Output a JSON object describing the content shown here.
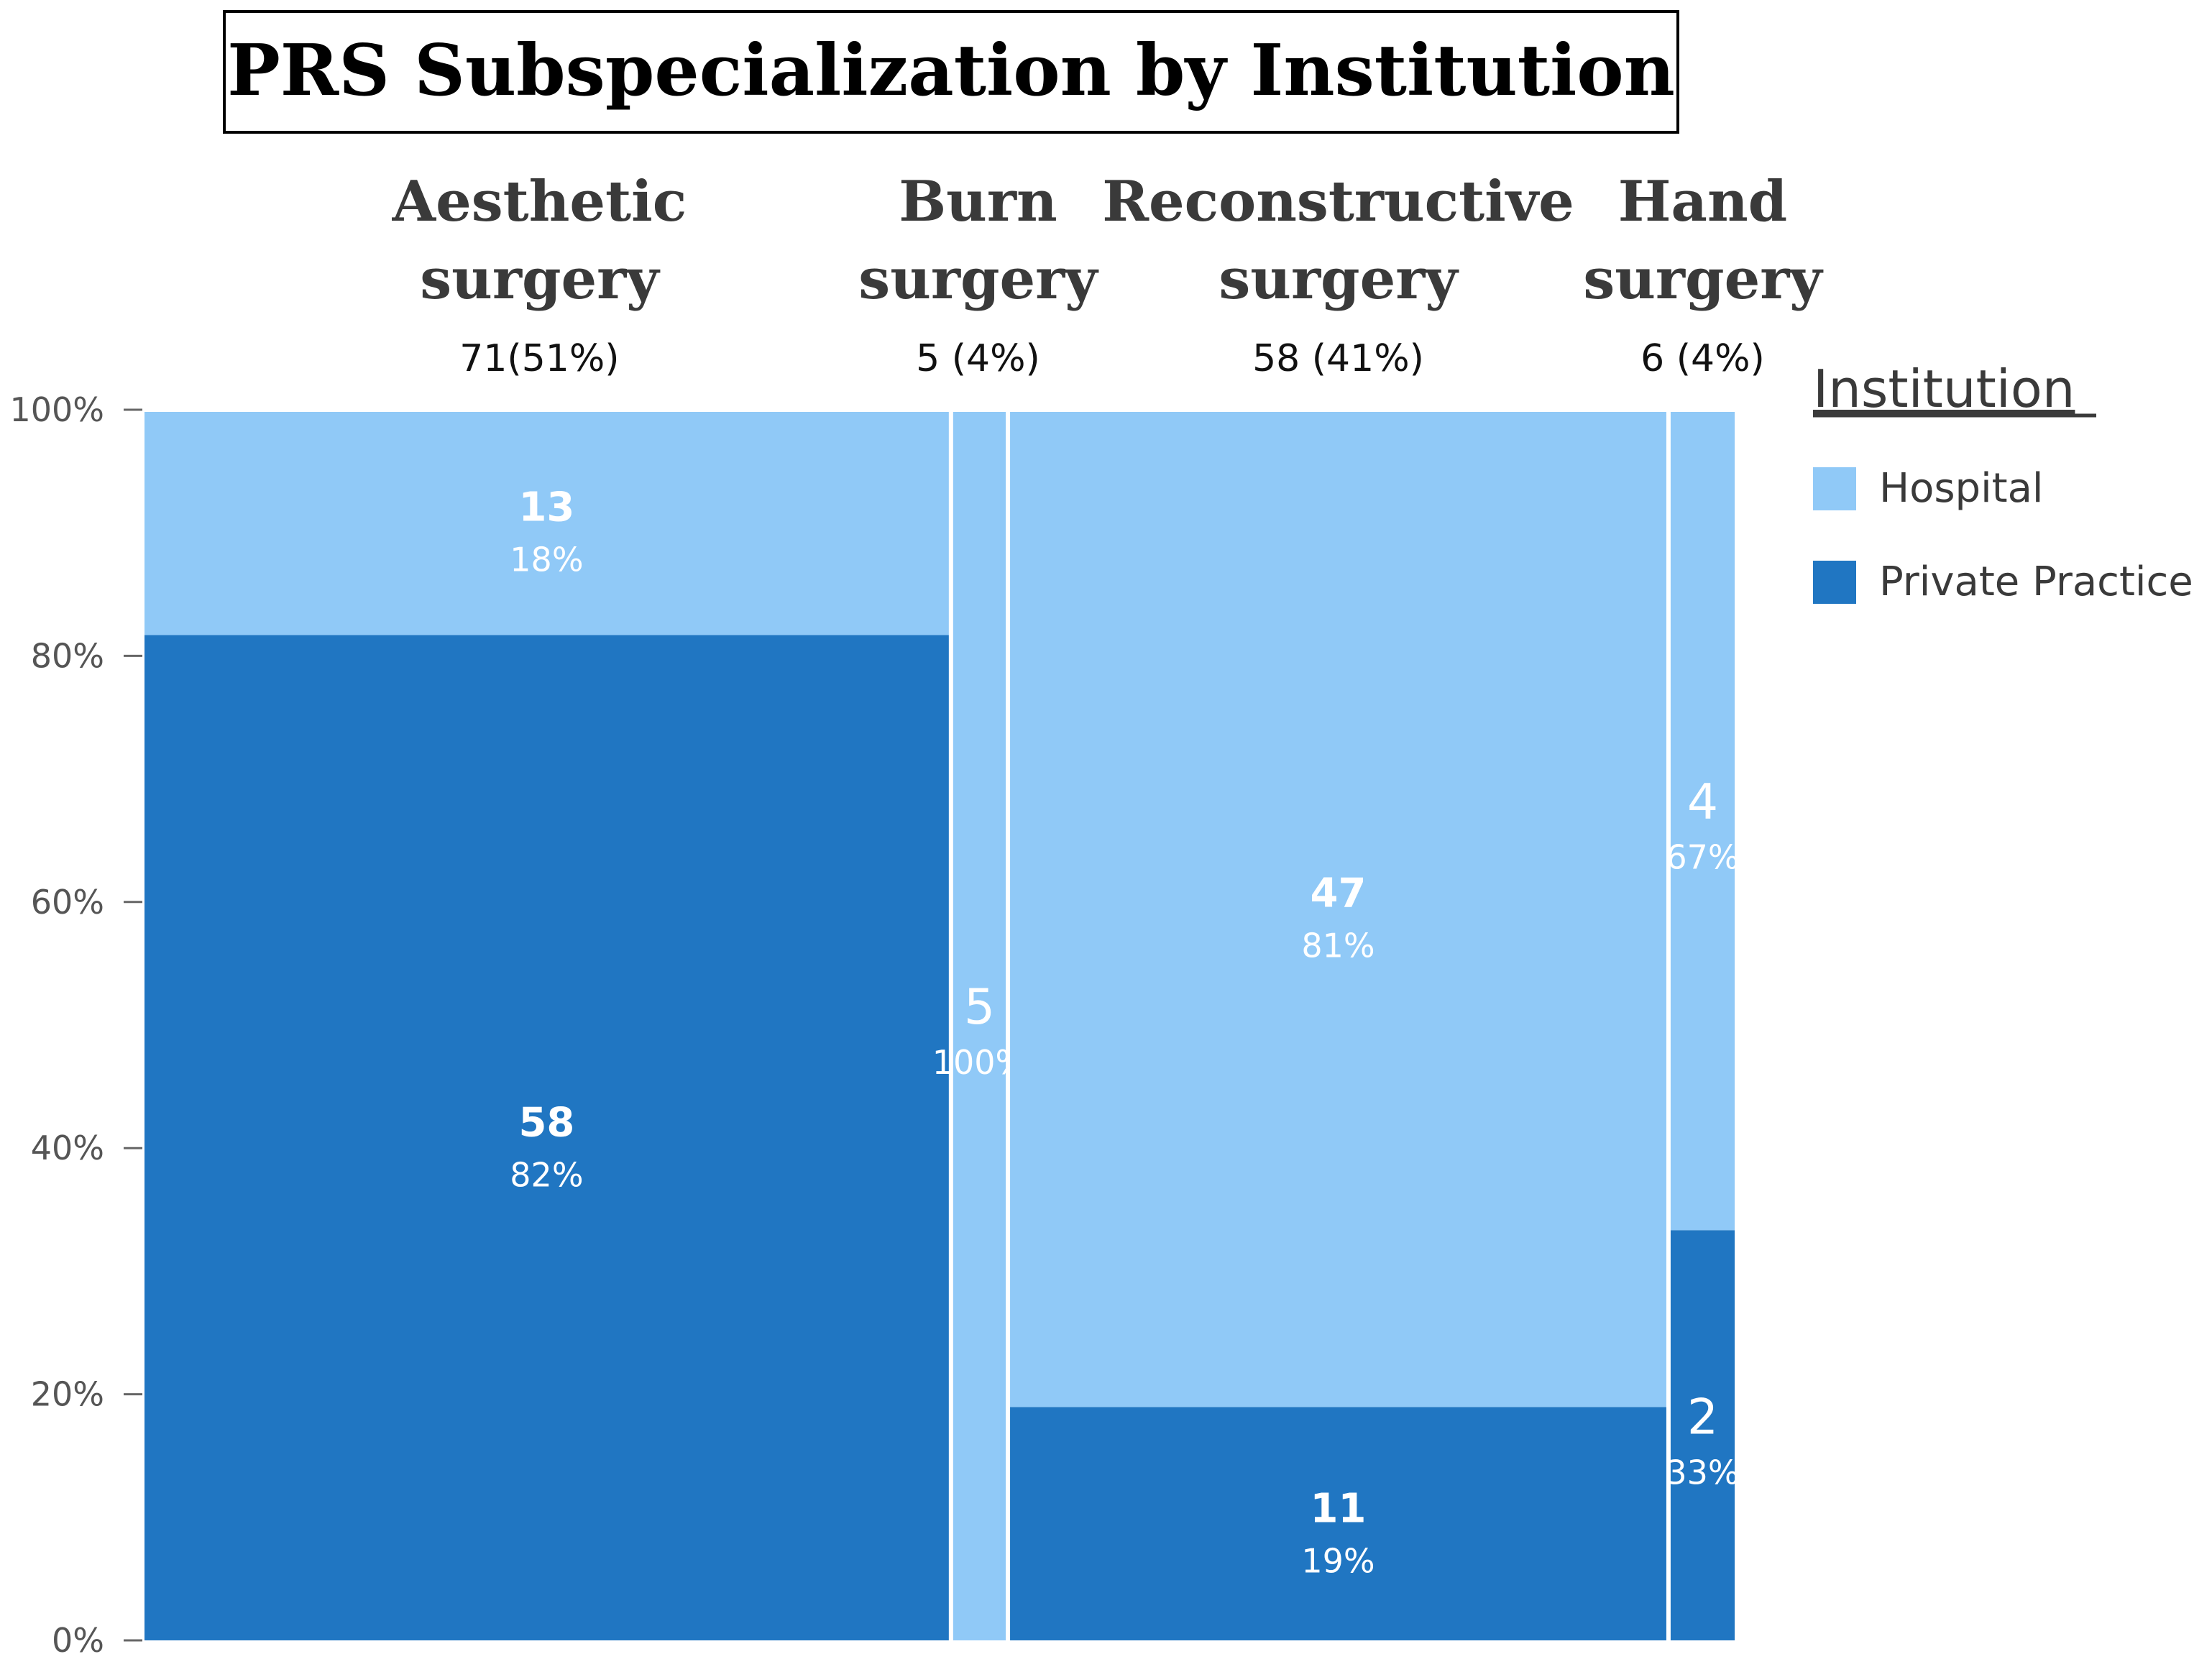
{
  "chart_data": {
    "type": "mosaic",
    "title": "PRS Subspecialization by Institution",
    "y_ticks": [
      "0%",
      "20%",
      "40%",
      "60%",
      "80%",
      "100%"
    ],
    "ylim": [
      0,
      100
    ],
    "legend": {
      "title": "Institution",
      "position": "right",
      "entries": [
        {
          "name": "Hospital",
          "color": "#90c9f7"
        },
        {
          "name": "Private Practice",
          "color": "#2076c2"
        }
      ]
    },
    "categories": [
      {
        "label_lines": [
          "Aesthetic",
          "surgery"
        ],
        "summary": "71(51%)",
        "total": 71,
        "width_percent": 51,
        "cells": [
          {
            "series": "Private Practice",
            "count": "58",
            "percent_label": "82%",
            "value": 58,
            "share": 81.7,
            "bold": true
          },
          {
            "series": "Hospital",
            "count": "13",
            "percent_label": "18%",
            "value": 13,
            "share": 18.3,
            "bold": true
          }
        ]
      },
      {
        "label_lines": [
          "Burn",
          "surgery"
        ],
        "summary": "5 (4%)",
        "total": 5,
        "width_percent": 4,
        "cells": [
          {
            "series": "Private Practice",
            "count": "",
            "percent_label": "",
            "value": 0,
            "share": 0,
            "bold": false
          },
          {
            "series": "Hospital",
            "count": "5",
            "percent_label": "100%",
            "value": 5,
            "share": 100,
            "bold": false
          }
        ]
      },
      {
        "label_lines": [
          "Reconstructive",
          "surgery"
        ],
        "summary": "58 (41%)",
        "total": 58,
        "width_percent": 41,
        "cells": [
          {
            "series": "Private Practice",
            "count": "11",
            "percent_label": "19%",
            "value": 11,
            "share": 19,
            "bold": true
          },
          {
            "series": "Hospital",
            "count": "47",
            "percent_label": "81%",
            "value": 47,
            "share": 81,
            "bold": true
          }
        ]
      },
      {
        "label_lines": [
          "Hand",
          "surgery"
        ],
        "summary": "6 (4%)",
        "total": 6,
        "width_percent": 4,
        "cells": [
          {
            "series": "Private Practice",
            "count": "2",
            "percent_label": "33%",
            "value": 2,
            "share": 33.3,
            "bold": false
          },
          {
            "series": "Hospital",
            "count": "4",
            "percent_label": "67%",
            "value": 4,
            "share": 66.7,
            "bold": false
          }
        ]
      }
    ]
  }
}
